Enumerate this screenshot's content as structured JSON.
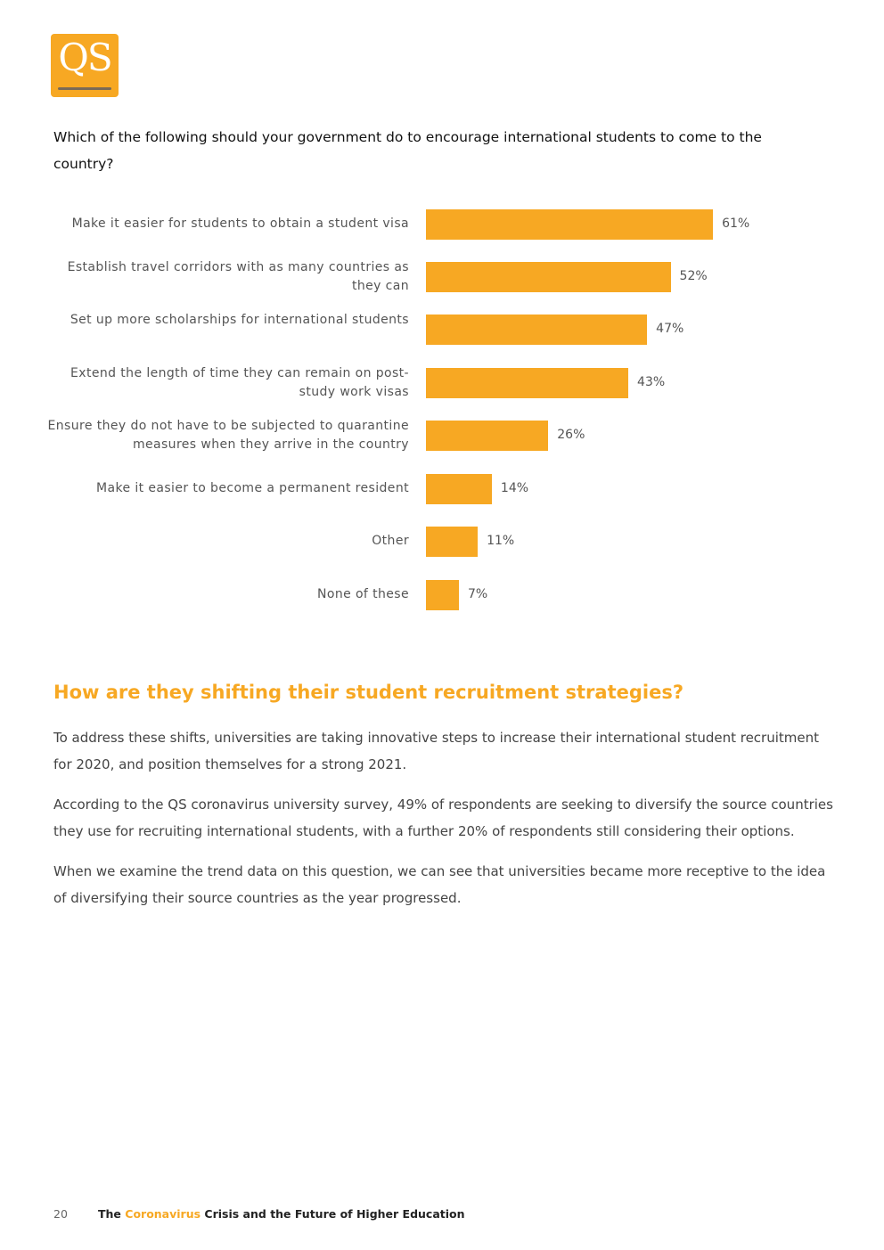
{
  "logo": {
    "text": "QS"
  },
  "question": "Which of the following should your government do to encourage international students to come to the country?",
  "chart_data": {
    "type": "bar",
    "orientation": "horizontal",
    "categories": [
      "Make it easier for students to obtain a student visa",
      "Establish travel corridors with as many countries as they can",
      "Set up more scholarships for international students",
      "Extend the length of time they can remain on post-study work visas",
      "Ensure they do not have to be subjected to quarantine measures when they arrive in the country",
      "Make it easier to become a permanent resident",
      "Other",
      "None of these"
    ],
    "values": [
      61,
      52,
      47,
      43,
      26,
      14,
      11,
      7
    ],
    "value_labels": [
      "61%",
      "52%",
      "47%",
      "43%",
      "26%",
      "14%",
      "11%",
      "7%"
    ],
    "unit": "%",
    "color": "#f7a823",
    "grid": false,
    "axes_visible": false
  },
  "section": {
    "heading": "How are they shifting their student recruitment strategies?",
    "paragraphs": [
      "To address these shifts, universities are taking innovative steps to increase their international student recruitment for 2020, and position themselves for a strong 2021.",
      "According to the QS coronavirus university survey, 49% of respondents are seeking to diversify the source countries they use for recruiting international students, with a further 20% of respondents still considering their options.",
      "When we examine the trend data on this question, we can see that universities became more receptive to the idea of diversifying their source countries as the year progressed."
    ]
  },
  "footer": {
    "page_number": "20",
    "title_pre": "The ",
    "title_highlight": "Coronavirus",
    "title_post": " Crisis and the Future of Higher Education"
  }
}
